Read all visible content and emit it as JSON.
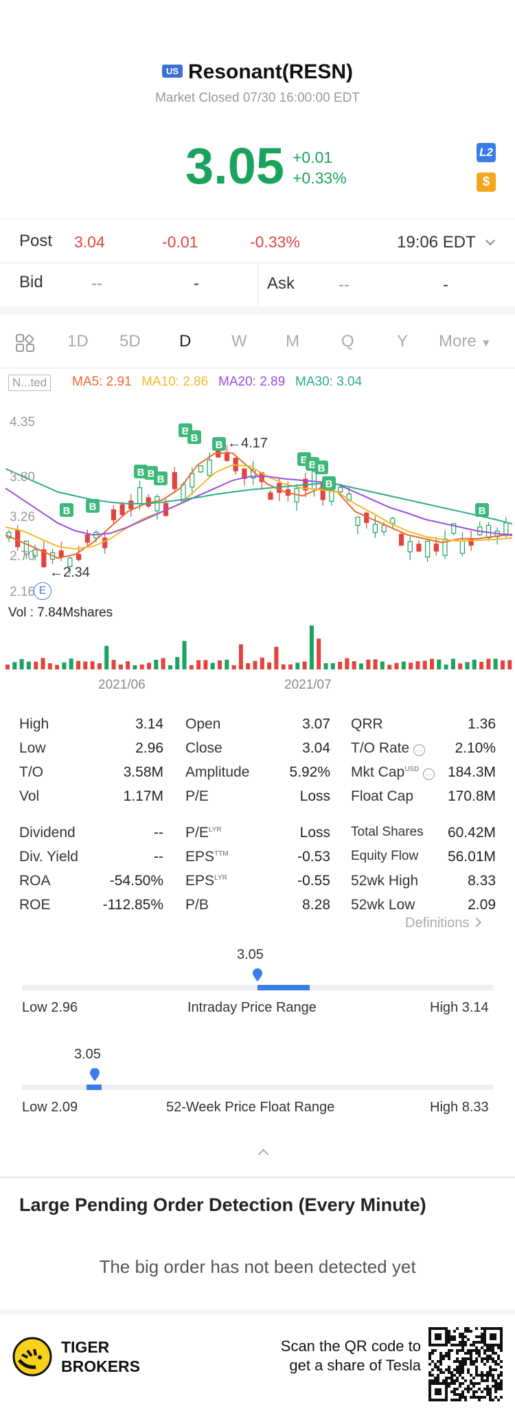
{
  "header": {
    "market_badge": "US",
    "title": "Resonant(RESN)",
    "status": "Market Closed 07/30 16:00:00 EDT",
    "price": "3.05",
    "change": "+0.01",
    "change_pct": "+0.33%",
    "l2_badge": "L2",
    "s_badge": "$"
  },
  "post": {
    "label": "Post",
    "price": "3.04",
    "change": "-0.01",
    "change_pct": "-0.33%",
    "time": "19:06 EDT"
  },
  "bid": {
    "label": "Bid",
    "price": "--",
    "size": "-"
  },
  "ask": {
    "label": "Ask",
    "price": "--",
    "size": "-"
  },
  "tabs": [
    "1D",
    "5D",
    "D",
    "W",
    "M",
    "Q",
    "Y",
    "More"
  ],
  "active_tab": "D",
  "ma": {
    "tag": "N...ted",
    "ma5": "MA5: 2.91",
    "ma10": "MA10: 2.86",
    "ma20": "MA20: 2.89",
    "ma30": "MA30: 3.04",
    "colors": {
      "ma5": "#f0662e",
      "ma10": "#f2b92a",
      "ma20": "#9b4de0",
      "ma30": "#2bab8a"
    }
  },
  "chart": {
    "y_labels": [
      "4.35",
      "3.80",
      "3.26",
      "2.70",
      "2.16"
    ],
    "high_mark": "←4.17",
    "low_mark": "←2.34",
    "earnings_marker": "E",
    "buy_marker": "B",
    "vol_label": "Vol  : 7.84Mshares",
    "x_labels": [
      "2021/06",
      "2021/07"
    ]
  },
  "chart_data": {
    "type": "line",
    "title": "",
    "series": [
      {
        "name": "MA5",
        "values": [
          2.9,
          2.8,
          2.7,
          2.6,
          2.65,
          2.8,
          3.0,
          3.2,
          3.3,
          3.35,
          3.5,
          3.8,
          3.95,
          3.95,
          3.75,
          3.55,
          3.45,
          3.4,
          3.5,
          3.45,
          3.2,
          3.1,
          3.0,
          2.9,
          2.85,
          2.8,
          2.85,
          2.85,
          2.88,
          2.91
        ]
      },
      {
        "name": "MA10",
        "values": [
          3.0,
          2.95,
          2.85,
          2.75,
          2.72,
          2.75,
          2.85,
          3.0,
          3.12,
          3.2,
          3.3,
          3.5,
          3.7,
          3.8,
          3.78,
          3.65,
          3.55,
          3.5,
          3.48,
          3.45,
          3.3,
          3.18,
          3.05,
          2.95,
          2.88,
          2.84,
          2.82,
          2.83,
          2.84,
          2.86
        ]
      },
      {
        "name": "MA20",
        "values": [
          3.5,
          3.35,
          3.2,
          3.05,
          2.95,
          2.9,
          2.92,
          3.0,
          3.1,
          3.2,
          3.3,
          3.4,
          3.5,
          3.6,
          3.65,
          3.65,
          3.62,
          3.6,
          3.58,
          3.55,
          3.45,
          3.35,
          3.25,
          3.18,
          3.1,
          3.05,
          3.0,
          2.95,
          2.92,
          2.89
        ]
      },
      {
        "name": "MA30",
        "values": [
          3.75,
          3.65,
          3.55,
          3.45,
          3.4,
          3.35,
          3.32,
          3.3,
          3.3,
          3.32,
          3.35,
          3.38,
          3.42,
          3.45,
          3.48,
          3.5,
          3.52,
          3.54,
          3.56,
          3.55,
          3.5,
          3.45,
          3.4,
          3.35,
          3.3,
          3.25,
          3.2,
          3.15,
          3.1,
          3.04
        ]
      }
    ],
    "ylim": [
      2.16,
      4.35
    ]
  },
  "stats": [
    [
      "High",
      "3.14",
      "Open",
      "3.07",
      "QRR",
      "1.36"
    ],
    [
      "Low",
      "2.96",
      "Close",
      "3.04",
      "T/O Rate",
      "2.10%"
    ],
    [
      "T/O",
      "3.58M",
      "Amplitude",
      "5.92%",
      "Mkt Cap",
      "184.3M"
    ],
    [
      "Vol",
      "1.17M",
      "P/E",
      "Loss",
      "Float Cap",
      "170.8M"
    ]
  ],
  "stats2": [
    [
      "Dividend",
      "--",
      "P/E",
      "Loss",
      "Total Shares",
      "60.42M"
    ],
    [
      "Div. Yield",
      "--",
      "EPS",
      "-0.53",
      "Equity Flow",
      "56.01M"
    ],
    [
      "ROA",
      "-54.50%",
      "EPS",
      "-0.55",
      "52wk High",
      "8.33"
    ],
    [
      "ROE",
      "-112.85%",
      "P/B",
      "8.28",
      "52wk Low",
      "2.09"
    ]
  ],
  "sup": {
    "lyr": "LYR",
    "ttm": "TTM",
    "usd": "USD"
  },
  "definitions": "Definitions",
  "intraday": {
    "current": "3.05",
    "low": "Low 2.96",
    "title": "Intraday Price Range",
    "high": "High 3.14",
    "fill_start": 0.5,
    "fill_end": 0.61,
    "marker": 0.5
  },
  "week52": {
    "current": "3.05",
    "low": "Low 2.09",
    "title": "52-Week Price Float Range",
    "high": "High 8.33",
    "marker": 0.154
  },
  "large_order": {
    "title": "Large Pending Order Detection (Every Minute)",
    "message": "The big order has not been detected yet"
  },
  "footer": {
    "brand_line1": "TIGER",
    "brand_line2": "BROKERS",
    "scan_line1": "Scan the QR code to",
    "scan_line2": "get a share of Tesla"
  }
}
